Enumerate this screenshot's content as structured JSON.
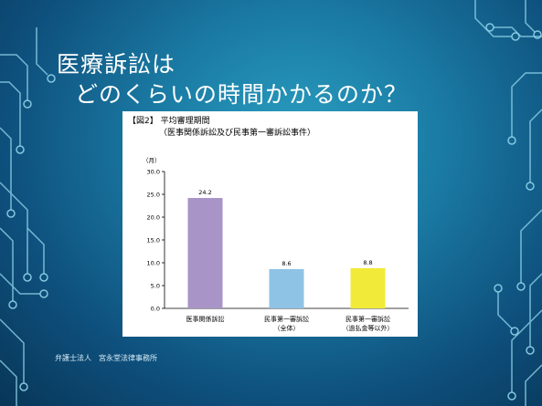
{
  "slide": {
    "title_line1": "医療訴訟は",
    "title_line2": "どのくらいの時間かかるのか？",
    "footer": "弁護士法人　宮永堂法律事務所",
    "colors": {
      "background_center": "#2a9ec0",
      "background_edge": "#083657",
      "circuit_lines": "#8fd3ea"
    }
  },
  "chart_data": {
    "type": "bar",
    "title": "【図2】 平均審理期間",
    "subtitle": "（医事関係訴訟及び民事第一審訴訟事件）",
    "ylabel": "（月）",
    "categories": [
      [
        "医事関係訴訟"
      ],
      [
        "民事第一審訴訟",
        "（全体）"
      ],
      [
        "民事第一審訴訟",
        "（過払金等以外）"
      ]
    ],
    "values": [
      24.2,
      8.6,
      8.8
    ],
    "data_labels": [
      "24.2",
      "8.6",
      "8.8"
    ],
    "bar_colors": [
      "#a894c7",
      "#8ec3e6",
      "#f2ea38"
    ],
    "ylim": [
      0,
      30
    ],
    "yticks": [
      "0.0",
      "5.0",
      "10.0",
      "15.0",
      "20.0",
      "25.0",
      "30.0"
    ],
    "ytick_values": [
      0,
      5,
      10,
      15,
      20,
      25,
      30
    ],
    "grid": false,
    "legend": "none"
  }
}
